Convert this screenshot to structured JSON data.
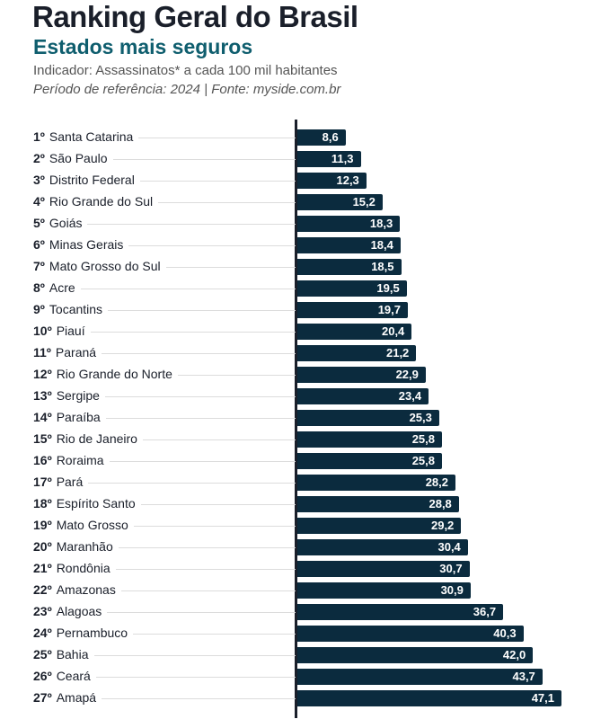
{
  "header": {
    "title": "Ranking Geral do Brasil",
    "subtitle": "Estados mais seguros",
    "indicator": "Indicador: Assassinatos* a cada 100 mil habitantes",
    "period": "Período de referência: 2024 | Fonte: myside.com.br"
  },
  "chart_data": {
    "type": "bar",
    "orientation": "horizontal",
    "bar_color": "#0b2b3e",
    "xlim": [
      0,
      47.1
    ],
    "ranks": [
      "1º",
      "2º",
      "3º",
      "4º",
      "5º",
      "6º",
      "7º",
      "8º",
      "9º",
      "10º",
      "11º",
      "12º",
      "13º",
      "14º",
      "15º",
      "16º",
      "17º",
      "18º",
      "19º",
      "20º",
      "21º",
      "22º",
      "23º",
      "24º",
      "25º",
      "26º",
      "27º"
    ],
    "categories": [
      "Santa Catarina",
      "São Paulo",
      "Distrito Federal",
      "Rio Grande do Sul",
      "Goiás",
      "Minas Gerais",
      "Mato Grosso do Sul",
      "Acre",
      "Tocantins",
      "Piauí",
      "Paraná",
      "Rio Grande do Norte",
      "Sergipe",
      "Paraíba",
      "Rio de Janeiro",
      "Roraima",
      "Pará",
      "Espírito Santo",
      "Mato Grosso",
      "Maranhão",
      "Rondônia",
      "Amazonas",
      "Alagoas",
      "Pernambuco",
      "Bahia",
      "Ceará",
      "Amapá"
    ],
    "values": [
      8.6,
      11.3,
      12.3,
      15.2,
      18.3,
      18.4,
      18.5,
      19.5,
      19.7,
      20.4,
      21.2,
      22.9,
      23.4,
      25.3,
      25.8,
      25.8,
      28.2,
      28.8,
      29.2,
      30.4,
      30.7,
      30.9,
      36.7,
      40.3,
      42.0,
      43.7,
      47.1
    ],
    "value_labels": [
      "8,6",
      "11,3",
      "12,3",
      "15,2",
      "18,3",
      "18,4",
      "18,5",
      "19,5",
      "19,7",
      "20,4",
      "21,2",
      "22,9",
      "23,4",
      "25,3",
      "25,8",
      "25,8",
      "28,2",
      "28,8",
      "29,2",
      "30,4",
      "30,7",
      "30,9",
      "36,7",
      "40,3",
      "42,0",
      "43,7",
      "47,1"
    ]
  }
}
